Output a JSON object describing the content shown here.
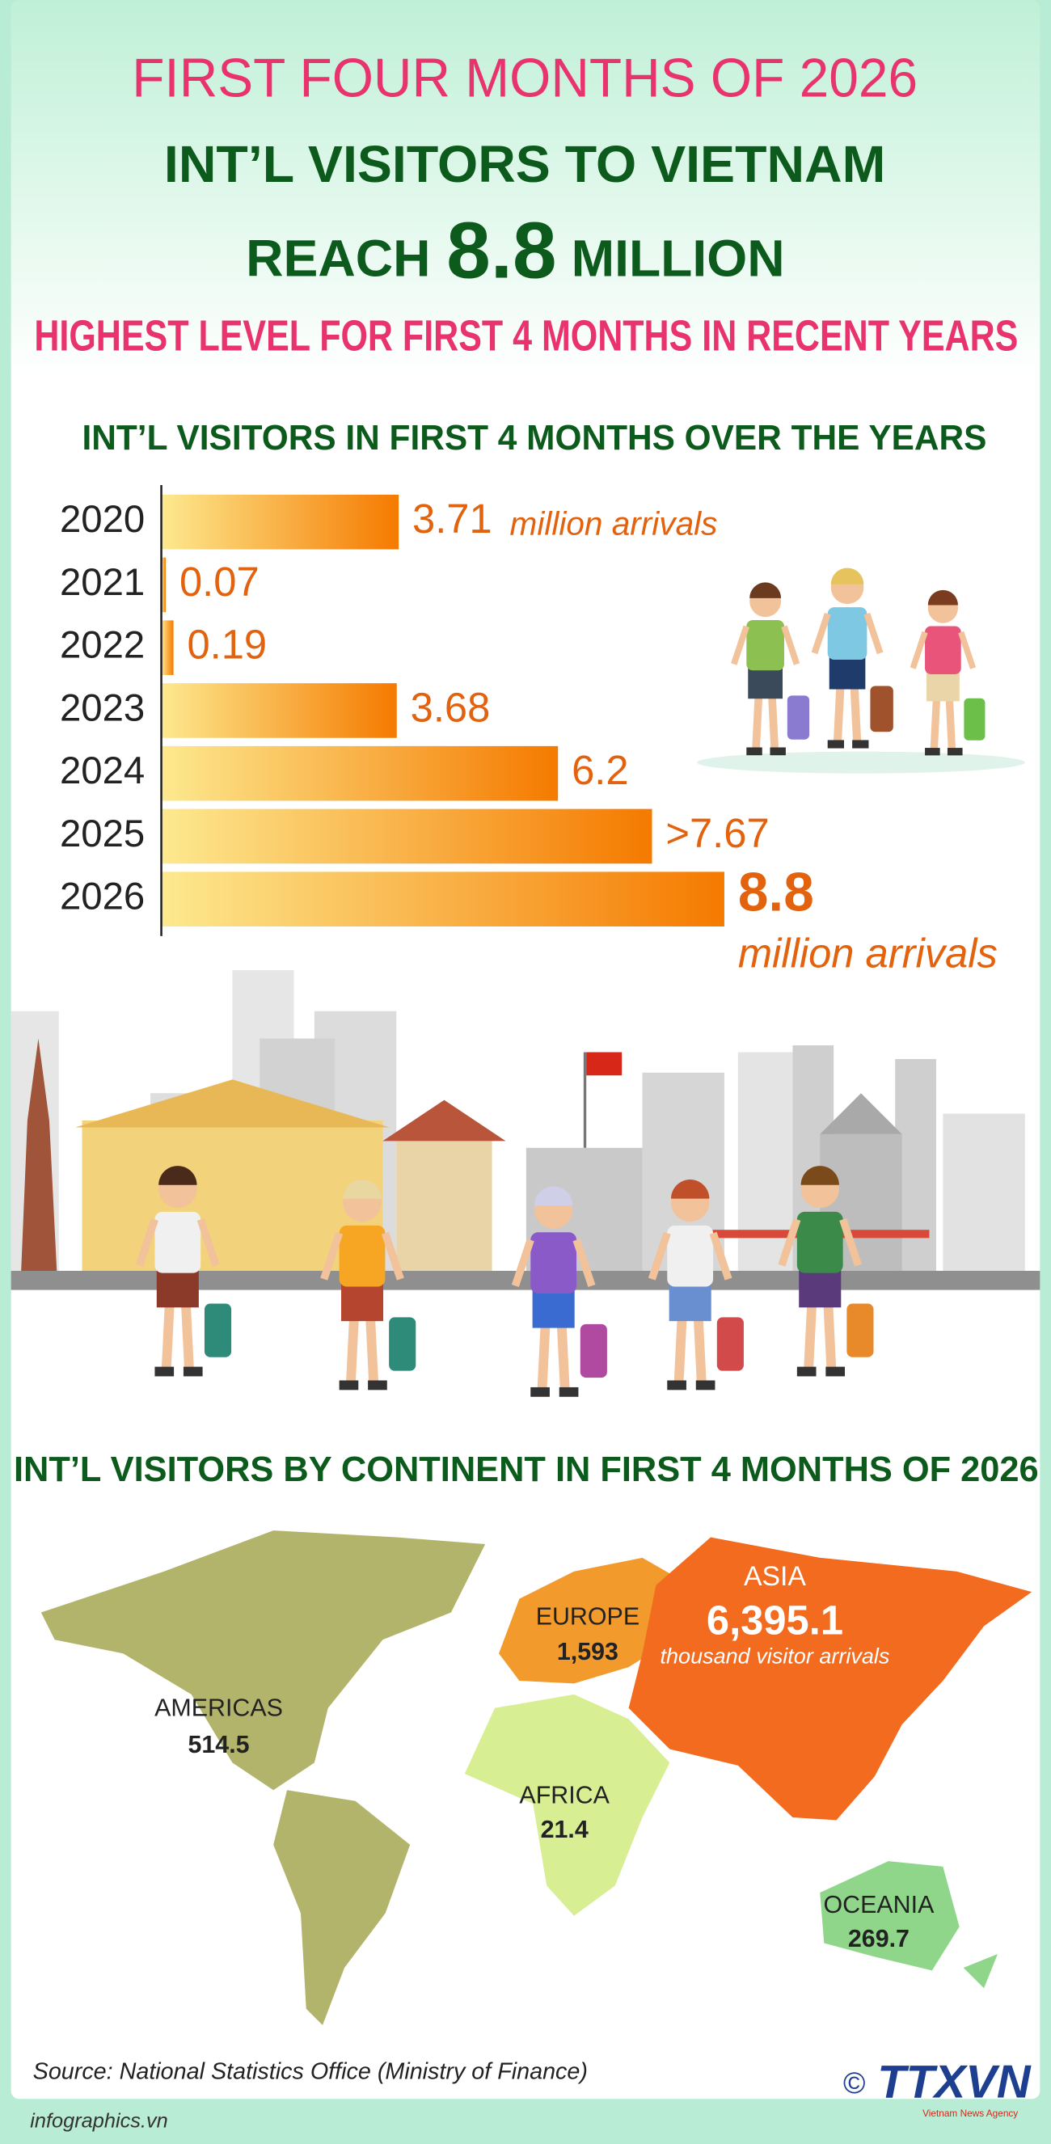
{
  "header": {
    "kicker": "FIRST FOUR MONTHS OF 2026",
    "headline": "INT’L VISITORS TO VIETNAM",
    "reach_pre": "REACH",
    "reach_value": "8.8",
    "reach_post": "MILLION",
    "subhead": "HIGHEST LEVEL FOR FIRST 4 MONTHS IN RECENT YEARS"
  },
  "chart_data": {
    "type": "bar",
    "orientation": "horizontal",
    "title": "INT’L VISITORS IN FIRST 4 MONTHS OVER THE YEARS",
    "categories": [
      "2020",
      "2021",
      "2022",
      "2023",
      "2024",
      "2025",
      "2026"
    ],
    "values": [
      3.71,
      0.07,
      0.19,
      3.68,
      6.2,
      7.67,
      8.8
    ],
    "value_labels": [
      "3.71",
      "0.07",
      "0.19",
      "3.68",
      "6.2",
      ">7.67",
      "8.8"
    ],
    "annotation": "million arrivals",
    "color_stops": [
      "#fde98f",
      "#f57a00"
    ]
  },
  "map": {
    "title": "INT’L VISITORS BY CONTINENT IN FIRST 4 MONTHS OF 2026",
    "unit": "thousand visitor arrivals",
    "regions": [
      {
        "name": "ASIA",
        "value": "6,395.1"
      },
      {
        "name": "EUROPE",
        "value": "1,593"
      },
      {
        "name": "AMERICAS",
        "value": "514.5"
      },
      {
        "name": "AFRICA",
        "value": "21.4"
      },
      {
        "name": "OCEANIA",
        "value": "269.7"
      }
    ]
  },
  "footer": {
    "source": "Source: National Statistics Office (Ministry of Finance)",
    "copyright": "©",
    "logo": "TTXVN",
    "logo_sub": "Vietnam News Agency",
    "site": "infographics.vn"
  }
}
